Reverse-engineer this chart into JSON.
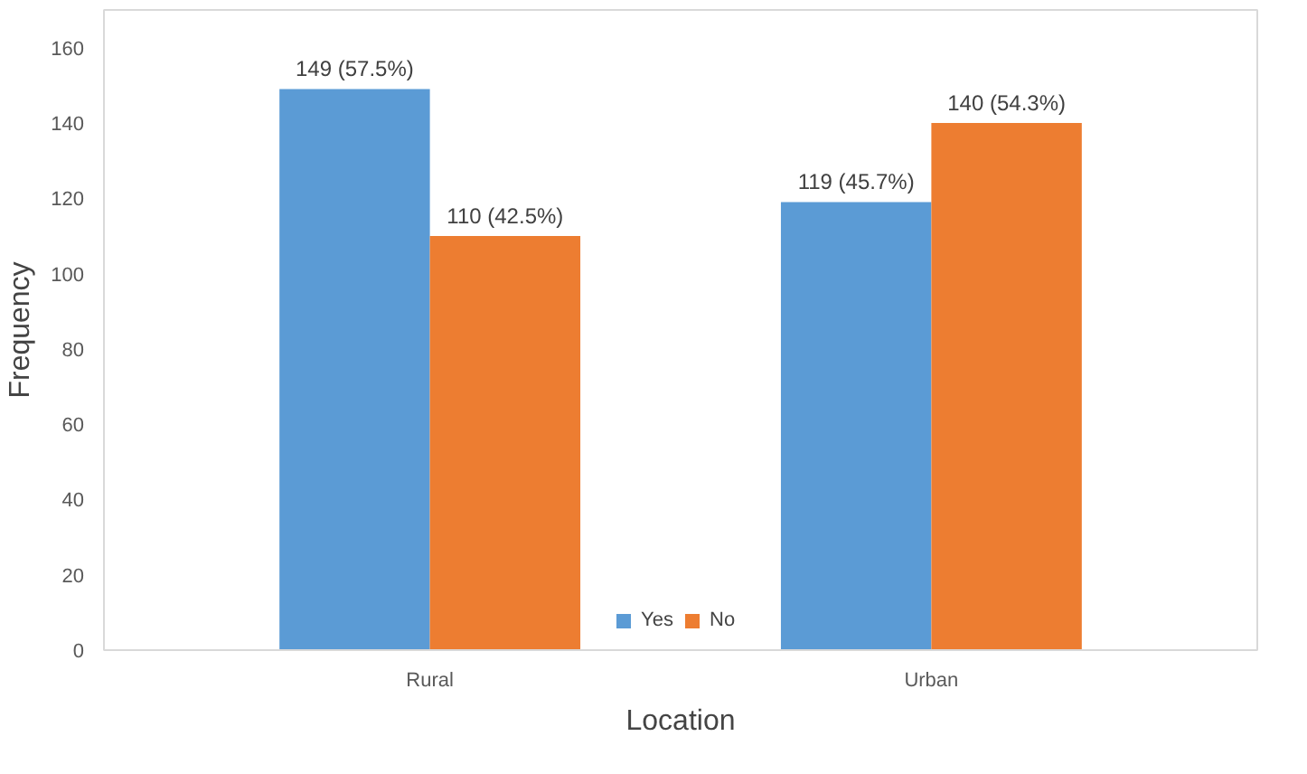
{
  "chart_data": {
    "type": "bar",
    "xlabel": "Location",
    "ylabel": "Frequency",
    "categories": [
      "Rural",
      "Urban"
    ],
    "series": [
      {
        "name": "Yes",
        "color": "#5b9bd5",
        "values": [
          149,
          119
        ],
        "value_labels": [
          "149 (57.5%)",
          "119 (45.7%)"
        ]
      },
      {
        "name": "No",
        "color": "#ed7d31",
        "values": [
          110,
          140
        ],
        "value_labels": [
          "110 (42.5%)",
          "140 (54.3%)"
        ]
      }
    ],
    "ylim": [
      0,
      170
    ],
    "yticks": [
      0,
      20,
      40,
      60,
      80,
      100,
      120,
      140,
      160
    ],
    "grid": false,
    "legend": "bottom"
  }
}
